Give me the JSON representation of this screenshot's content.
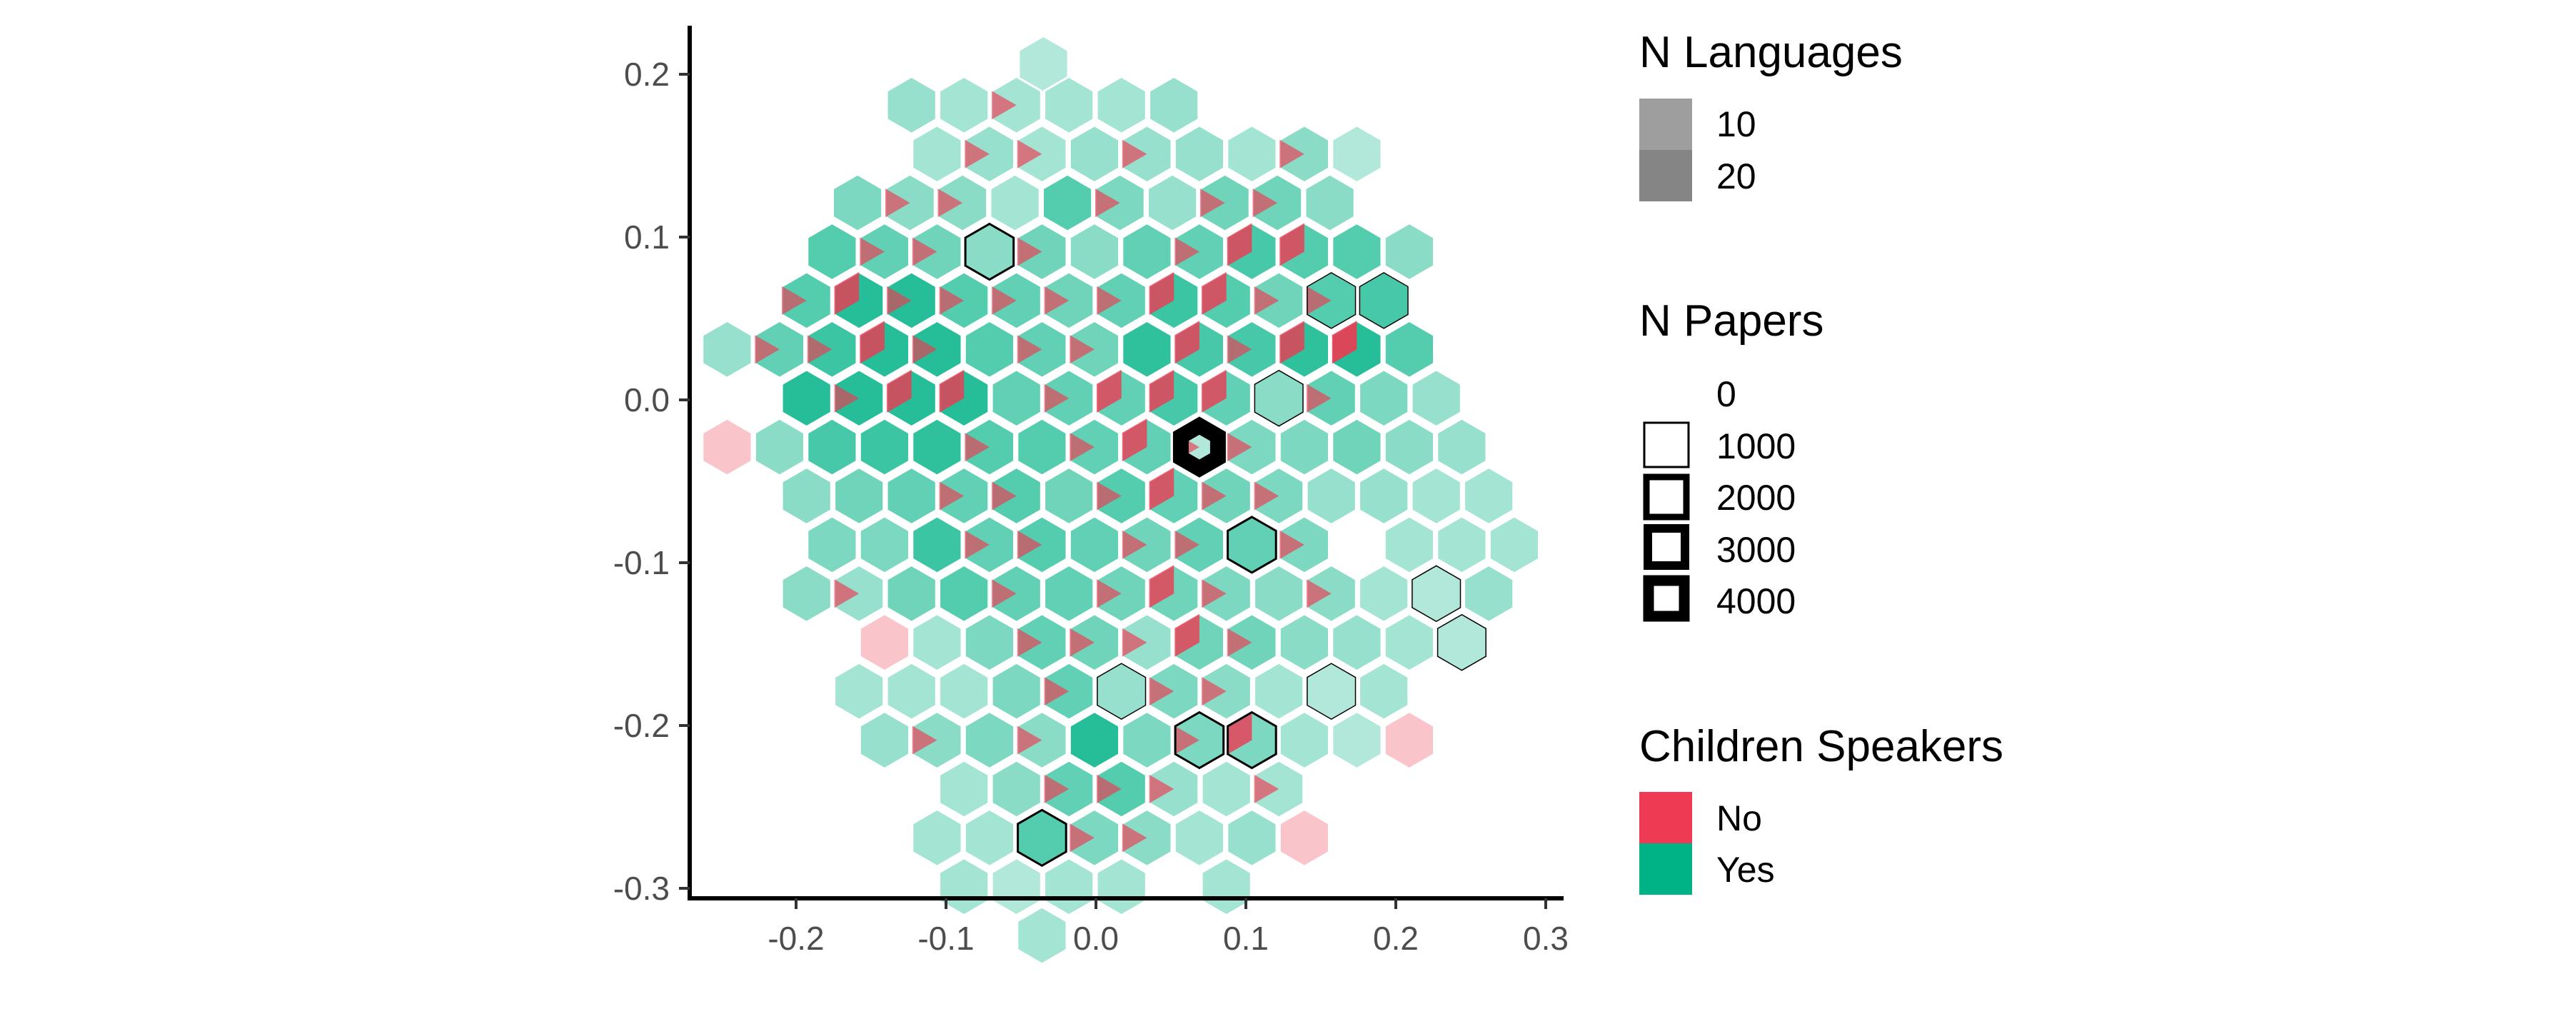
{
  "chart_data": {
    "type": "hexbin",
    "xlabel": "",
    "ylabel": "",
    "xlim": [
      -0.27,
      0.31
    ],
    "ylim": [
      -0.31,
      0.235
    ],
    "x_ticks": [
      {
        "value": -0.2,
        "label": "-0.2"
      },
      {
        "value": -0.1,
        "label": "-0.1"
      },
      {
        "value": 0.0,
        "label": "0.0"
      },
      {
        "value": 0.1,
        "label": "0.1"
      },
      {
        "value": 0.2,
        "label": "0.2"
      },
      {
        "value": 0.3,
        "label": "0.3"
      }
    ],
    "y_ticks": [
      {
        "value": 0.2,
        "label": "0.2"
      },
      {
        "value": 0.1,
        "label": "0.1"
      },
      {
        "value": 0.0,
        "label": "0.0"
      },
      {
        "value": -0.1,
        "label": "-0.1"
      },
      {
        "value": -0.2,
        "label": "-0.2"
      },
      {
        "value": -0.3,
        "label": "-0.3"
      }
    ],
    "grid": false,
    "legend_position": "right",
    "colors": {
      "No": "#EE3A52",
      "Yes": "#00B386"
    },
    "legend": {
      "languages": {
        "title": "N Languages",
        "entries": [
          {
            "label": "10",
            "value": 10
          },
          {
            "label": "20",
            "value": 20
          }
        ]
      },
      "papers": {
        "title": "N Papers",
        "entries": [
          {
            "label": "0",
            "value": 0
          },
          {
            "label": "1000",
            "value": 1000
          },
          {
            "label": "2000",
            "value": 2000
          },
          {
            "label": "3000",
            "value": 3000
          },
          {
            "label": "4000",
            "value": 4000
          }
        ]
      },
      "children": {
        "title": "Children Speakers",
        "entries": [
          {
            "label": "No",
            "color": "#EE3A52"
          },
          {
            "label": "Yes",
            "color": "#00B386"
          }
        ]
      }
    },
    "hexes": [
      [
        -0.035,
        0.206,
        2,
        0,
        0
      ],
      [
        -0.123,
        0.181,
        4,
        0,
        0
      ],
      [
        -0.088,
        0.181,
        3,
        0,
        0
      ],
      [
        -0.053,
        0.181,
        2,
        1,
        0
      ],
      [
        -0.018,
        0.181,
        3,
        0,
        0
      ],
      [
        0.017,
        0.181,
        3,
        0,
        0
      ],
      [
        0.052,
        0.181,
        4,
        0,
        0
      ],
      [
        -0.106,
        0.151,
        3,
        0,
        0
      ],
      [
        -0.071,
        0.151,
        3,
        1,
        0
      ],
      [
        -0.036,
        0.151,
        2,
        1,
        0
      ],
      [
        -0.001,
        0.151,
        4,
        0,
        0
      ],
      [
        0.034,
        0.151,
        3,
        1,
        0
      ],
      [
        0.069,
        0.151,
        4,
        0,
        0
      ],
      [
        0.104,
        0.151,
        3,
        0,
        0
      ],
      [
        0.139,
        0.151,
        4,
        1,
        0
      ],
      [
        0.174,
        0.151,
        2,
        0,
        0
      ],
      [
        -0.159,
        0.121,
        6,
        0,
        0
      ],
      [
        -0.124,
        0.121,
        4,
        1,
        0
      ],
      [
        -0.089,
        0.121,
        4,
        1,
        0
      ],
      [
        -0.054,
        0.121,
        3,
        0,
        0
      ],
      [
        -0.019,
        0.121,
        9,
        0,
        0
      ],
      [
        0.016,
        0.121,
        5,
        1,
        0
      ],
      [
        0.051,
        0.121,
        4,
        0,
        0
      ],
      [
        0.086,
        0.121,
        6,
        1,
        0
      ],
      [
        0.121,
        0.121,
        6,
        1,
        0
      ],
      [
        0.156,
        0.121,
        5,
        0,
        0
      ],
      [
        -0.176,
        0.091,
        9,
        0,
        0
      ],
      [
        -0.141,
        0.091,
        7,
        1,
        0
      ],
      [
        -0.106,
        0.091,
        6,
        1,
        0
      ],
      [
        -0.071,
        0.091,
        5,
        0,
        900
      ],
      [
        -0.036,
        0.091,
        6,
        1,
        0
      ],
      [
        -0.001,
        0.091,
        5,
        0,
        0
      ],
      [
        0.034,
        0.091,
        8,
        0,
        0
      ],
      [
        0.069,
        0.091,
        7,
        1,
        0
      ],
      [
        0.104,
        0.091,
        8,
        2,
        0
      ],
      [
        0.139,
        0.091,
        7,
        2,
        0
      ],
      [
        0.174,
        0.091,
        9,
        0,
        0
      ],
      [
        0.209,
        0.091,
        5,
        0,
        0
      ],
      [
        -0.193,
        0.061,
        8,
        1,
        0
      ],
      [
        -0.158,
        0.061,
        11,
        2,
        0
      ],
      [
        -0.123,
        0.061,
        12,
        1,
        0
      ],
      [
        -0.088,
        0.061,
        8,
        1,
        0
      ],
      [
        -0.053,
        0.061,
        7,
        1,
        0
      ],
      [
        -0.018,
        0.061,
        6,
        1,
        0
      ],
      [
        0.017,
        0.061,
        7,
        1,
        0
      ],
      [
        0.052,
        0.061,
        9,
        2,
        0
      ],
      [
        0.087,
        0.061,
        7,
        2,
        0
      ],
      [
        0.122,
        0.061,
        6,
        1,
        0
      ],
      [
        0.157,
        0.061,
        8,
        1,
        300
      ],
      [
        0.192,
        0.061,
        10,
        0,
        300
      ],
      [
        -0.246,
        0.031,
        4,
        0,
        0
      ],
      [
        -0.211,
        0.031,
        7,
        1,
        0
      ],
      [
        -0.176,
        0.031,
        10,
        1,
        0
      ],
      [
        -0.141,
        0.031,
        11,
        2,
        0
      ],
      [
        -0.106,
        0.031,
        12,
        1,
        0
      ],
      [
        -0.071,
        0.031,
        9,
        0,
        0
      ],
      [
        -0.036,
        0.031,
        7,
        1,
        0
      ],
      [
        -0.001,
        0.031,
        6,
        1,
        0
      ],
      [
        0.034,
        0.031,
        12,
        0,
        0
      ],
      [
        0.069,
        0.031,
        8,
        2,
        0
      ],
      [
        0.104,
        0.031,
        9,
        1,
        0
      ],
      [
        0.139,
        0.031,
        10,
        2,
        0
      ],
      [
        0.174,
        0.031,
        12,
        3,
        0
      ],
      [
        0.209,
        0.031,
        9,
        0,
        0
      ],
      [
        -0.193,
        0.001,
        13,
        0,
        0
      ],
      [
        -0.158,
        0.001,
        13,
        1,
        0
      ],
      [
        -0.123,
        0.001,
        12,
        2,
        0
      ],
      [
        -0.088,
        0.001,
        13,
        2,
        0
      ],
      [
        -0.053,
        0.001,
        8,
        0,
        0
      ],
      [
        -0.018,
        0.001,
        7,
        1,
        0
      ],
      [
        0.017,
        0.001,
        6,
        2,
        0
      ],
      [
        0.052,
        0.001,
        8,
        2,
        0
      ],
      [
        0.087,
        0.001,
        6,
        2,
        0
      ],
      [
        0.122,
        0.001,
        5,
        0,
        300
      ],
      [
        0.157,
        0.001,
        7,
        1,
        0
      ],
      [
        0.192,
        0.001,
        6,
        0,
        0
      ],
      [
        0.227,
        0.001,
        4,
        0,
        0
      ],
      [
        -0.246,
        -0.029,
        0,
        2,
        0
      ],
      [
        -0.211,
        -0.029,
        5,
        0,
        0
      ],
      [
        -0.176,
        -0.029,
        10,
        0,
        0
      ],
      [
        -0.141,
        -0.029,
        11,
        0,
        0
      ],
      [
        -0.106,
        -0.029,
        12,
        0,
        0
      ],
      [
        -0.071,
        -0.029,
        8,
        1,
        0
      ],
      [
        -0.036,
        -0.029,
        9,
        0,
        0
      ],
      [
        -0.001,
        -0.029,
        7,
        1,
        0
      ],
      [
        0.034,
        -0.029,
        6,
        2,
        0
      ],
      [
        0.069,
        -0.029,
        1,
        1,
        4000
      ],
      [
        0.104,
        -0.029,
        5,
        1,
        0
      ],
      [
        0.139,
        -0.029,
        6,
        0,
        0
      ],
      [
        0.174,
        -0.029,
        7,
        0,
        0
      ],
      [
        0.209,
        -0.029,
        5,
        0,
        0
      ],
      [
        0.244,
        -0.029,
        4,
        0,
        0
      ],
      [
        -0.193,
        -0.059,
        5,
        0,
        0
      ],
      [
        -0.158,
        -0.059,
        7,
        0,
        0
      ],
      [
        -0.123,
        -0.059,
        8,
        0,
        0
      ],
      [
        -0.088,
        -0.059,
        7,
        1,
        0
      ],
      [
        -0.053,
        -0.059,
        8,
        1,
        0
      ],
      [
        -0.018,
        -0.059,
        7,
        0,
        0
      ],
      [
        0.017,
        -0.059,
        8,
        1,
        0
      ],
      [
        0.052,
        -0.059,
        6,
        2,
        0
      ],
      [
        0.087,
        -0.059,
        6,
        1,
        0
      ],
      [
        0.122,
        -0.059,
        5,
        1,
        0
      ],
      [
        0.157,
        -0.059,
        4,
        0,
        0
      ],
      [
        0.192,
        -0.059,
        4,
        0,
        0
      ],
      [
        0.227,
        -0.059,
        3,
        0,
        0
      ],
      [
        0.262,
        -0.059,
        3,
        0,
        0
      ],
      [
        -0.176,
        -0.089,
        6,
        0,
        0
      ],
      [
        -0.141,
        -0.089,
        6,
        0,
        0
      ],
      [
        -0.106,
        -0.089,
        11,
        0,
        0
      ],
      [
        -0.071,
        -0.089,
        7,
        1,
        0
      ],
      [
        -0.036,
        -0.089,
        8,
        1,
        0
      ],
      [
        -0.001,
        -0.089,
        8,
        0,
        0
      ],
      [
        0.034,
        -0.089,
        6,
        1,
        0
      ],
      [
        0.069,
        -0.089,
        7,
        1,
        0
      ],
      [
        0.104,
        -0.089,
        8,
        0,
        900
      ],
      [
        0.139,
        -0.089,
        5,
        1,
        0
      ],
      [
        0.209,
        -0.089,
        3,
        0,
        0
      ],
      [
        0.244,
        -0.089,
        3,
        0,
        0
      ],
      [
        0.279,
        -0.089,
        3,
        0,
        0
      ],
      [
        -0.193,
        -0.119,
        5,
        0,
        0
      ],
      [
        -0.158,
        -0.119,
        3,
        1,
        0
      ],
      [
        -0.123,
        -0.119,
        7,
        0,
        0
      ],
      [
        -0.088,
        -0.119,
        9,
        0,
        0
      ],
      [
        -0.053,
        -0.119,
        7,
        1,
        0
      ],
      [
        -0.018,
        -0.119,
        8,
        0,
        0
      ],
      [
        0.017,
        -0.119,
        6,
        1,
        0
      ],
      [
        0.052,
        -0.119,
        5,
        2,
        0
      ],
      [
        0.087,
        -0.119,
        5,
        1,
        0
      ],
      [
        0.122,
        -0.119,
        5,
        0,
        0
      ],
      [
        0.157,
        -0.119,
        4,
        1,
        0
      ],
      [
        0.192,
        -0.119,
        3,
        0,
        0
      ],
      [
        0.227,
        -0.119,
        2,
        0,
        300
      ],
      [
        0.262,
        -0.119,
        4,
        0,
        0
      ],
      [
        -0.141,
        -0.149,
        0,
        2,
        0
      ],
      [
        -0.106,
        -0.149,
        3,
        0,
        0
      ],
      [
        -0.071,
        -0.149,
        6,
        0,
        0
      ],
      [
        -0.036,
        -0.149,
        7,
        1,
        0
      ],
      [
        -0.001,
        -0.149,
        6,
        1,
        0
      ],
      [
        0.034,
        -0.149,
        3,
        1,
        0
      ],
      [
        0.069,
        -0.149,
        5,
        2,
        0
      ],
      [
        0.104,
        -0.149,
        6,
        1,
        0
      ],
      [
        0.139,
        -0.149,
        5,
        0,
        0
      ],
      [
        0.174,
        -0.149,
        4,
        0,
        0
      ],
      [
        0.209,
        -0.149,
        3,
        0,
        0
      ],
      [
        0.244,
        -0.149,
        2,
        0,
        300
      ],
      [
        -0.158,
        -0.179,
        3,
        0,
        0
      ],
      [
        -0.123,
        -0.179,
        3,
        0,
        0
      ],
      [
        -0.088,
        -0.179,
        3,
        0,
        0
      ],
      [
        -0.053,
        -0.179,
        6,
        0,
        0
      ],
      [
        -0.018,
        -0.179,
        7,
        1,
        0
      ],
      [
        0.017,
        -0.179,
        4,
        0,
        300
      ],
      [
        0.052,
        -0.179,
        5,
        1,
        0
      ],
      [
        0.087,
        -0.179,
        4,
        1,
        0
      ],
      [
        0.122,
        -0.179,
        3,
        0,
        0
      ],
      [
        0.157,
        -0.179,
        2,
        0,
        600
      ],
      [
        0.192,
        -0.179,
        3,
        0,
        0
      ],
      [
        -0.141,
        -0.209,
        4,
        0,
        0
      ],
      [
        -0.106,
        -0.209,
        4,
        1,
        0
      ],
      [
        -0.071,
        -0.209,
        6,
        0,
        0
      ],
      [
        -0.036,
        -0.209,
        4,
        1,
        0
      ],
      [
        -0.001,
        -0.209,
        13,
        0,
        0
      ],
      [
        0.034,
        -0.209,
        6,
        0,
        0
      ],
      [
        0.069,
        -0.209,
        5,
        1,
        900
      ],
      [
        0.104,
        -0.209,
        4,
        2,
        900
      ],
      [
        0.139,
        -0.209,
        3,
        0,
        0
      ],
      [
        0.174,
        -0.209,
        2,
        0,
        0
      ],
      [
        0.209,
        -0.209,
        0,
        2,
        0
      ],
      [
        -0.088,
        -0.239,
        3,
        0,
        0
      ],
      [
        -0.053,
        -0.239,
        5,
        0,
        0
      ],
      [
        -0.018,
        -0.239,
        7,
        1,
        0
      ],
      [
        0.017,
        -0.239,
        8,
        1,
        0
      ],
      [
        0.052,
        -0.239,
        3,
        1,
        0
      ],
      [
        0.087,
        -0.239,
        3,
        0,
        0
      ],
      [
        0.122,
        -0.239,
        2,
        1,
        0
      ],
      [
        -0.106,
        -0.269,
        3,
        0,
        0
      ],
      [
        -0.071,
        -0.269,
        3,
        0,
        0
      ],
      [
        -0.036,
        -0.269,
        9,
        0,
        900
      ],
      [
        -0.001,
        -0.269,
        5,
        1,
        0
      ],
      [
        0.034,
        -0.269,
        4,
        1,
        0
      ],
      [
        0.069,
        -0.269,
        3,
        0,
        0
      ],
      [
        0.104,
        -0.269,
        4,
        0,
        0
      ],
      [
        0.139,
        -0.269,
        0,
        2,
        0
      ],
      [
        -0.088,
        -0.299,
        3,
        0,
        0
      ],
      [
        -0.053,
        -0.299,
        2,
        0,
        0
      ],
      [
        -0.018,
        -0.299,
        3,
        0,
        0
      ],
      [
        0.017,
        -0.299,
        3,
        0,
        0
      ],
      [
        0.087,
        -0.299,
        3,
        0,
        0
      ],
      [
        -0.036,
        -0.329,
        3,
        0,
        0
      ]
    ],
    "hex_fields": [
      "x",
      "y",
      "n_languages_yes",
      "n_languages_no",
      "n_papers"
    ]
  }
}
